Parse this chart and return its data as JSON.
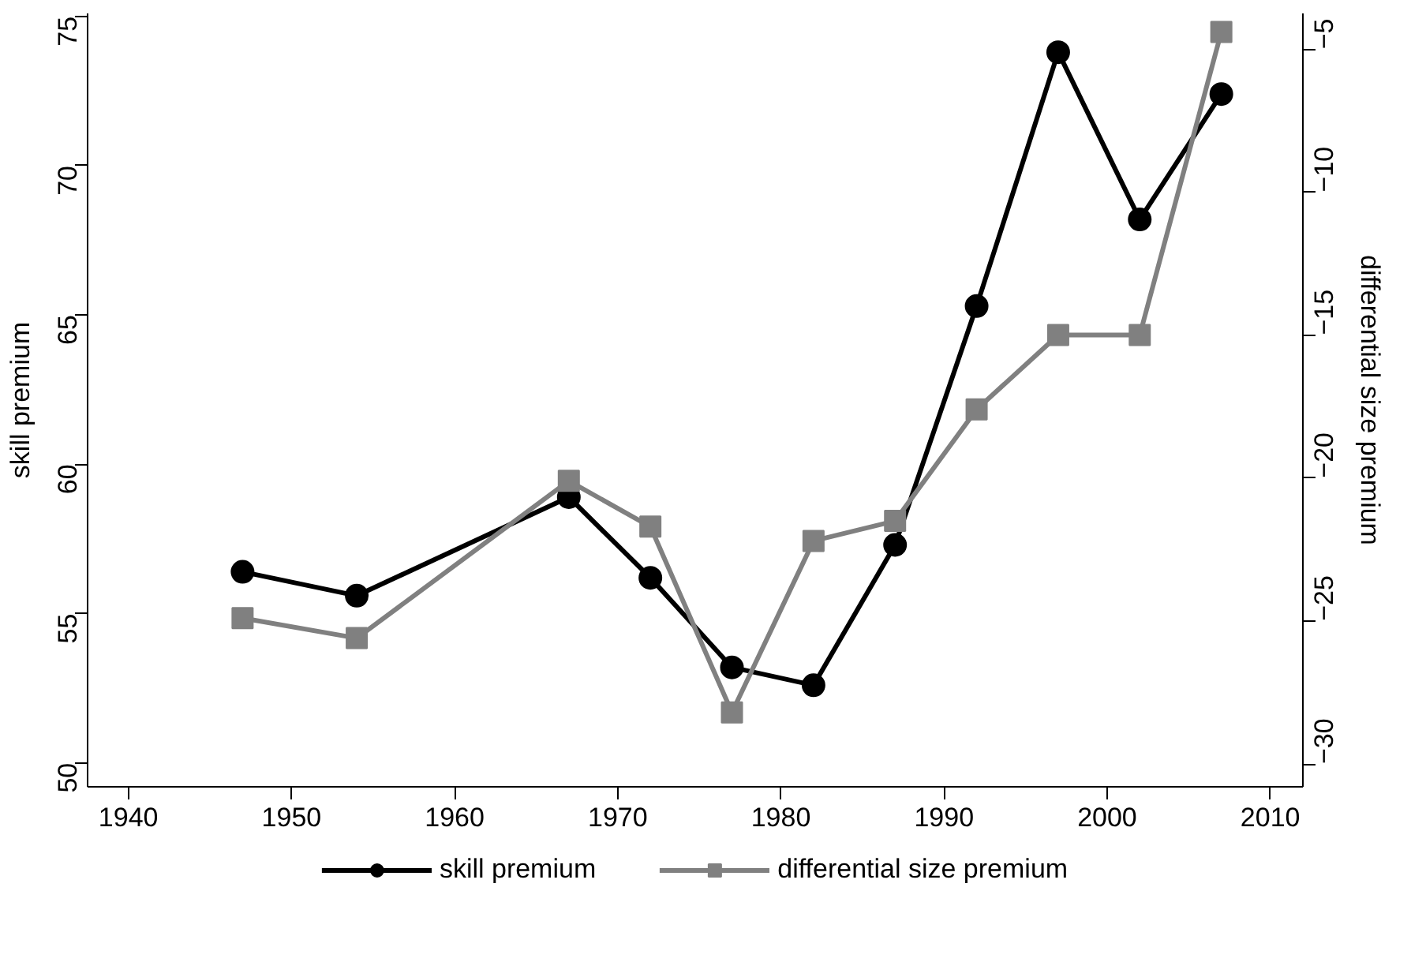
{
  "chart_data": {
    "type": "line",
    "ylabel": "skill premium",
    "y2label": "differential size premium",
    "x": [
      1947,
      1954,
      1967,
      1972,
      1977,
      1982,
      1987,
      1992,
      1997,
      2002,
      2007
    ],
    "series": [
      {
        "name": "skill premium",
        "color": "#000000",
        "marker": "circle",
        "values": [
          56.4,
          55.6,
          58.9,
          56.2,
          53.2,
          52.6,
          57.3,
          65.3,
          73.8,
          68.2,
          72.4
        ]
      },
      {
        "name": "differential size premium",
        "color": "#808080",
        "marker": "square",
        "axis": "y2",
        "values": [
          -24.9,
          -25.6,
          -20.1,
          -21.7,
          -28.2,
          -22.2,
          -21.5,
          -17.6,
          -15.0,
          -15.0,
          -4.4
        ]
      }
    ],
    "xlim": [
      1937.5,
      2012
    ],
    "xticks": [
      1940,
      1950,
      1960,
      1970,
      1980,
      1990,
      2000,
      2010
    ],
    "ylim": [
      49.2,
      75.1
    ],
    "yticks": [
      50,
      55,
      60,
      65,
      70,
      75
    ],
    "y2lim": [
      -30.8,
      -3.75
    ],
    "y2ticks": [
      -30,
      -25,
      -20,
      -15,
      -10,
      -5
    ],
    "grid": false,
    "legend": "bottom",
    "line_style": "solid"
  }
}
